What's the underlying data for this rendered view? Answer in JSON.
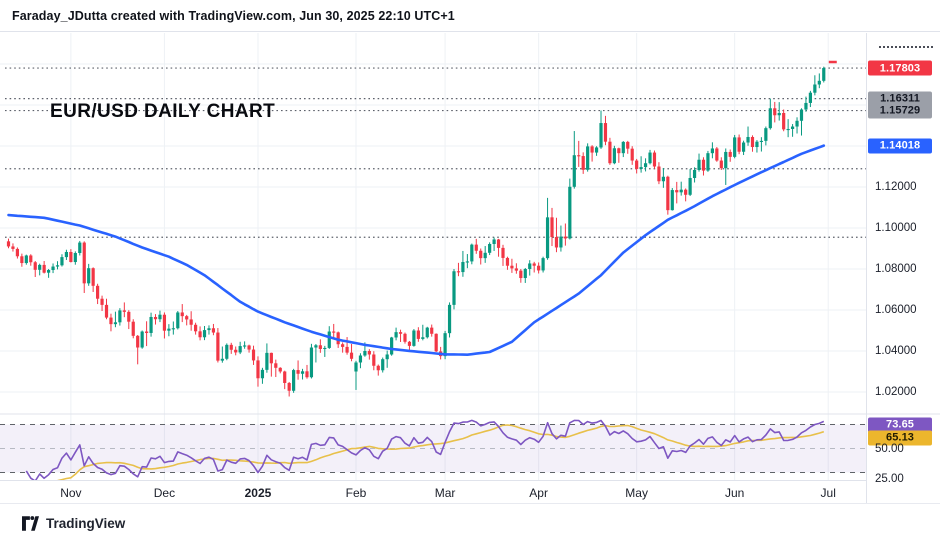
{
  "header": {
    "attribution": "Faraday_JDutta created with TradingView.com, Jun 30, 2025 22:10 UTC+1"
  },
  "footer": {
    "brand": "TradingView"
  },
  "colors": {
    "up": "#089981",
    "down": "#f23645",
    "ma": "#2962ff",
    "rsi": "#7e57c2",
    "rsi_ma": "#e8c04a",
    "badge_last_bg": "#f23645",
    "badge_gray_bg": "#9b9fa8",
    "badge_ma_bg": "#2962ff",
    "badge_rsi_bg": "#7e57c2",
    "badge_rsi_ma_bg": "#ecb62d",
    "grid": "#eef1f5",
    "dotted_level": "#5d616b",
    "axis_text": "#131722"
  },
  "chart_data": {
    "type": "candlestick",
    "title": "EUR/USD DAILY CHART",
    "pair": "EUR/USD",
    "timeframe": "Daily",
    "legend_position": "none",
    "grid": true,
    "x_axis": {
      "labels": [
        {
          "text": "Nov",
          "candle_index": 14,
          "bold": false
        },
        {
          "text": "Dec",
          "candle_index": 35,
          "bold": false
        },
        {
          "text": "2025",
          "candle_index": 56,
          "bold": true
        },
        {
          "text": "Feb",
          "candle_index": 78,
          "bold": false
        },
        {
          "text": "Mar",
          "candle_index": 98,
          "bold": false
        },
        {
          "text": "Apr",
          "candle_index": 119,
          "bold": false
        },
        {
          "text": "May",
          "candle_index": 141,
          "bold": false
        },
        {
          "text": "Jun",
          "candle_index": 163,
          "bold": false
        },
        {
          "text": "Jul",
          "candle_index": 184,
          "bold": false
        }
      ]
    },
    "y_axis": {
      "visible_range": [
        1.012,
        1.19
      ],
      "grid_values": [
        1.02,
        1.04,
        1.06,
        1.08,
        1.1,
        1.12,
        1.14,
        1.16,
        1.18
      ],
      "ticks": [
        {
          "label": "1.12000",
          "value": 1.12
        },
        {
          "label": "1.10000",
          "value": 1.1
        },
        {
          "label": "1.08000",
          "value": 1.08
        },
        {
          "label": "1.06000",
          "value": 1.06
        },
        {
          "label": "1.04000",
          "value": 1.04
        },
        {
          "label": "1.02000",
          "value": 1.02
        }
      ]
    },
    "last_price": {
      "value": 1.17803,
      "label": "1.17803",
      "direction": "up"
    },
    "horizontal_levels": [
      {
        "value": 1.17803,
        "label": "1.17803",
        "style": "last"
      },
      {
        "value": 1.16311,
        "label": "1.16311",
        "style": "gray"
      },
      {
        "value": 1.15729,
        "label": "1.15729",
        "style": "gray"
      },
      {
        "value": 1.1289,
        "label": "",
        "style": "plain"
      },
      {
        "value": 1.0955,
        "label": "",
        "style": "plain"
      }
    ],
    "ma_line": {
      "name": "moving-average",
      "current_value": 1.14018,
      "label": "1.14018",
      "anchors": [
        [
          0,
          1.1063
        ],
        [
          8,
          1.105
        ],
        [
          16,
          1.1012
        ],
        [
          24,
          1.0958
        ],
        [
          30,
          1.0905
        ],
        [
          36,
          1.086
        ],
        [
          40,
          1.082
        ],
        [
          44,
          1.077
        ],
        [
          48,
          1.0705
        ],
        [
          52,
          1.064
        ],
        [
          56,
          1.0592
        ],
        [
          62,
          1.054
        ],
        [
          68,
          1.0494
        ],
        [
          74,
          1.0455
        ],
        [
          80,
          1.043
        ],
        [
          86,
          1.041
        ],
        [
          92,
          1.0396
        ],
        [
          98,
          1.0384
        ],
        [
          103,
          1.0382
        ],
        [
          108,
          1.0395
        ],
        [
          113,
          1.0445
        ],
        [
          118,
          1.054
        ],
        [
          123,
          1.061
        ],
        [
          128,
          1.068
        ],
        [
          133,
          1.077
        ],
        [
          138,
          1.088
        ],
        [
          143,
          1.0965
        ],
        [
          148,
          1.104
        ],
        [
          153,
          1.1095
        ],
        [
          158,
          1.1155
        ],
        [
          163,
          1.121
        ],
        [
          168,
          1.1262
        ],
        [
          173,
          1.1312
        ],
        [
          178,
          1.1362
        ],
        [
          183,
          1.14018
        ]
      ]
    },
    "rsi_panel": {
      "length": 14,
      "current_value": 73.65,
      "current_label": "73.65",
      "ma_current_value": 65.13,
      "ma_current_label": "65.13",
      "upper_band": 70,
      "lower_band": 30,
      "mid_line": 50,
      "axis_ticks": [
        {
          "label": "50.00",
          "value": 50
        },
        {
          "label": "25.00",
          "value": 25
        }
      ]
    },
    "candles_ohlc": [
      [
        1.0935,
        1.0948,
        1.0901,
        1.091
      ],
      [
        1.091,
        1.0925,
        1.0885,
        1.0898
      ],
      [
        1.0898,
        1.0905,
        1.0851,
        1.0862
      ],
      [
        1.0862,
        1.0875,
        1.0811,
        1.0829
      ],
      [
        1.0829,
        1.087,
        1.0821,
        1.0866
      ],
      [
        1.0866,
        1.0872,
        1.0816,
        1.0833
      ],
      [
        1.0833,
        1.0839,
        1.0761,
        1.0796
      ],
      [
        1.0796,
        1.0826,
        1.0769,
        1.082
      ],
      [
        1.082,
        1.0839,
        1.0778,
        1.0782
      ],
      [
        1.0782,
        1.08,
        1.0757,
        1.0795
      ],
      [
        1.0795,
        1.0827,
        1.078,
        1.0812
      ],
      [
        1.0812,
        1.0838,
        1.0798,
        1.0818
      ],
      [
        1.0818,
        1.0872,
        1.0812,
        1.0858
      ],
      [
        1.0858,
        1.0894,
        1.0844,
        1.0883
      ],
      [
        1.0883,
        1.0897,
        1.0832,
        1.0834
      ],
      [
        1.0834,
        1.0886,
        1.0821,
        1.0878
      ],
      [
        1.0878,
        1.0937,
        1.0866,
        1.0929
      ],
      [
        1.0929,
        1.0935,
        1.0683,
        1.073
      ],
      [
        1.073,
        1.0825,
        1.0718,
        1.0804
      ],
      [
        1.0804,
        1.0808,
        1.0688,
        1.0718
      ],
      [
        1.0718,
        1.0728,
        1.0629,
        1.0655
      ],
      [
        1.0655,
        1.067,
        1.0595,
        1.0625
      ],
      [
        1.0625,
        1.0655,
        1.0555,
        1.0563
      ],
      [
        1.0563,
        1.0582,
        1.0496,
        1.0531
      ],
      [
        1.0531,
        1.0592,
        1.0516,
        1.054
      ],
      [
        1.054,
        1.0609,
        1.0524,
        1.0598
      ],
      [
        1.0598,
        1.0637,
        1.0565,
        1.0591
      ],
      [
        1.0591,
        1.0599,
        1.0507,
        1.0543
      ],
      [
        1.0543,
        1.0555,
        1.0462,
        1.0474
      ],
      [
        1.0474,
        1.0478,
        1.0335,
        1.0417
      ],
      [
        1.0417,
        1.05,
        1.0411,
        1.0495
      ],
      [
        1.0495,
        1.0545,
        1.0424,
        1.0488
      ],
      [
        1.0488,
        1.0587,
        1.047,
        1.0566
      ],
      [
        1.0566,
        1.058,
        1.0529,
        1.0555
      ],
      [
        1.0555,
        1.0597,
        1.0541,
        1.0577
      ],
      [
        1.0577,
        1.0588,
        1.0461,
        1.0499
      ],
      [
        1.0499,
        1.0531,
        1.0472,
        1.0509
      ],
      [
        1.0509,
        1.0544,
        1.048,
        1.0511
      ],
      [
        1.0511,
        1.0595,
        1.0505,
        1.0588
      ],
      [
        1.0588,
        1.0629,
        1.0541,
        1.057
      ],
      [
        1.057,
        1.0576,
        1.0525,
        1.0554
      ],
      [
        1.0554,
        1.0594,
        1.0499,
        1.0528
      ],
      [
        1.0528,
        1.0538,
        1.048,
        1.0496
      ],
      [
        1.0496,
        1.052,
        1.0452,
        1.0467
      ],
      [
        1.0467,
        1.0522,
        1.0453,
        1.0502
      ],
      [
        1.0502,
        1.0525,
        1.048,
        1.0511
      ],
      [
        1.0511,
        1.0532,
        1.0477,
        1.049
      ],
      [
        1.049,
        1.0512,
        1.0344,
        1.0353
      ],
      [
        1.0353,
        1.0422,
        1.0343,
        1.0362
      ],
      [
        1.0362,
        1.0437,
        1.0355,
        1.043
      ],
      [
        1.043,
        1.044,
        1.0386,
        1.0406
      ],
      [
        1.0406,
        1.0422,
        1.0379,
        1.0393
      ],
      [
        1.0393,
        1.0445,
        1.0385,
        1.0424
      ],
      [
        1.0424,
        1.0447,
        1.0411,
        1.0427
      ],
      [
        1.0427,
        1.0431,
        1.0392,
        1.0407
      ],
      [
        1.0407,
        1.0426,
        1.0332,
        1.0354
      ],
      [
        1.0354,
        1.0374,
        1.0226,
        1.0267
      ],
      [
        1.0267,
        1.0318,
        1.024,
        1.0308
      ],
      [
        1.0308,
        1.0437,
        1.0294,
        1.0391
      ],
      [
        1.0391,
        1.0392,
        1.0275,
        1.034
      ],
      [
        1.034,
        1.0358,
        1.0273,
        1.0318
      ],
      [
        1.0318,
        1.0321,
        1.0291,
        1.03
      ],
      [
        1.03,
        1.0304,
        1.0214,
        1.0244
      ],
      [
        1.0244,
        1.0249,
        1.0178,
        1.0206
      ],
      [
        1.0206,
        1.0313,
        1.0196,
        1.0307
      ],
      [
        1.0307,
        1.0354,
        1.026,
        1.0289
      ],
      [
        1.0289,
        1.0313,
        1.0261,
        1.0301
      ],
      [
        1.0301,
        1.0332,
        1.0265,
        1.0272
      ],
      [
        1.0272,
        1.0435,
        1.0266,
        1.0417
      ],
      [
        1.0417,
        1.0434,
        1.0344,
        1.0428
      ],
      [
        1.0428,
        1.0457,
        1.0391,
        1.041
      ],
      [
        1.041,
        1.0425,
        1.0371,
        1.0415
      ],
      [
        1.0415,
        1.0521,
        1.041,
        1.0495
      ],
      [
        1.0495,
        1.0532,
        1.0458,
        1.0491
      ],
      [
        1.0491,
        1.0495,
        1.0415,
        1.0433
      ],
      [
        1.0433,
        1.0442,
        1.0392,
        1.042
      ],
      [
        1.042,
        1.0468,
        1.0382,
        1.0392
      ],
      [
        1.0392,
        1.0434,
        1.035,
        1.0362
      ],
      [
        1.03,
        1.0352,
        1.021,
        1.0344
      ],
      [
        1.0344,
        1.0389,
        1.0316,
        1.0378
      ],
      [
        1.0378,
        1.0442,
        1.0372,
        1.04
      ],
      [
        1.04,
        1.0409,
        1.0358,
        1.0383
      ],
      [
        1.0383,
        1.0399,
        1.0306,
        1.0328
      ],
      [
        1.0328,
        1.0334,
        1.028,
        1.0306
      ],
      [
        1.0306,
        1.0368,
        1.0295,
        1.036
      ],
      [
        1.036,
        1.0402,
        1.0318,
        1.0383
      ],
      [
        1.0383,
        1.0469,
        1.0377,
        1.0466
      ],
      [
        1.0466,
        1.0514,
        1.0452,
        1.0492
      ],
      [
        1.0492,
        1.0504,
        1.0444,
        1.0484
      ],
      [
        1.0484,
        1.049,
        1.0436,
        1.0445
      ],
      [
        1.0445,
        1.0449,
        1.0401,
        1.0425
      ],
      [
        1.0425,
        1.0507,
        1.0421,
        1.05
      ],
      [
        1.05,
        1.0516,
        1.0445,
        1.0459
      ],
      [
        1.0459,
        1.0528,
        1.0452,
        1.0467
      ],
      [
        1.0467,
        1.0518,
        1.0461,
        1.0514
      ],
      [
        1.0514,
        1.0529,
        1.047,
        1.0484
      ],
      [
        1.0484,
        1.0486,
        1.0395,
        1.0398
      ],
      [
        1.0398,
        1.042,
        1.0359,
        1.0375
      ],
      [
        1.0375,
        1.0498,
        1.036,
        1.0487
      ],
      [
        1.0487,
        1.0637,
        1.0466,
        1.0625
      ],
      [
        1.0625,
        1.08,
        1.0603,
        1.0789
      ],
      [
        1.0789,
        1.083,
        1.0765,
        1.0785
      ],
      [
        1.0785,
        1.0888,
        1.0762,
        1.0834
      ],
      [
        1.0834,
        1.0873,
        1.0804,
        1.0837
      ],
      [
        1.0837,
        1.0924,
        1.0823,
        1.0919
      ],
      [
        1.0919,
        1.0947,
        1.0874,
        1.0889
      ],
      [
        1.0889,
        1.09,
        1.0822,
        1.0853
      ],
      [
        1.0853,
        1.0912,
        1.083,
        1.0879
      ],
      [
        1.0879,
        1.093,
        1.0868,
        1.0922
      ],
      [
        1.0922,
        1.0954,
        1.0888,
        1.0944
      ],
      [
        1.0944,
        1.0947,
        1.086,
        1.0903
      ],
      [
        1.0903,
        1.0918,
        1.0815,
        1.0854
      ],
      [
        1.0854,
        1.086,
        1.0796,
        1.0816
      ],
      [
        1.0816,
        1.085,
        1.0781,
        1.0803
      ],
      [
        1.0803,
        1.0828,
        1.0777,
        1.0792
      ],
      [
        1.0792,
        1.08,
        1.0733,
        1.0756
      ],
      [
        1.0756,
        1.0805,
        1.0732,
        1.08
      ],
      [
        1.08,
        1.0843,
        1.0768,
        1.0827
      ],
      [
        1.0827,
        1.0835,
        1.0783,
        1.0816
      ],
      [
        1.0816,
        1.0832,
        1.0778,
        1.0793
      ],
      [
        1.0793,
        1.086,
        1.0783,
        1.0853
      ],
      [
        1.0853,
        1.1147,
        1.0845,
        1.1052
      ],
      [
        1.1052,
        1.1098,
        1.0912,
        1.0956
      ],
      [
        1.0956,
        1.105,
        1.0882,
        1.0905
      ],
      [
        1.0905,
        1.1012,
        1.0885,
        1.0958
      ],
      [
        1.0958,
        1.1022,
        1.0914,
        1.0949
      ],
      [
        1.0949,
        1.1241,
        1.0944,
        1.1201
      ],
      [
        1.1201,
        1.1473,
        1.1192,
        1.1355
      ],
      [
        1.1355,
        1.1425,
        1.1298,
        1.1351
      ],
      [
        1.1351,
        1.1369,
        1.1264,
        1.1284
      ],
      [
        1.1284,
        1.1413,
        1.1275,
        1.1398
      ],
      [
        1.1398,
        1.1404,
        1.1324,
        1.1368
      ],
      [
        1.1368,
        1.1399,
        1.1352,
        1.1393
      ],
      [
        1.1393,
        1.1573,
        1.1386,
        1.1512
      ],
      [
        1.1512,
        1.1547,
        1.1404,
        1.1421
      ],
      [
        1.1421,
        1.144,
        1.1308,
        1.1316
      ],
      [
        1.1316,
        1.1401,
        1.1311,
        1.1389
      ],
      [
        1.1389,
        1.1392,
        1.1318,
        1.1365
      ],
      [
        1.1365,
        1.1424,
        1.1346,
        1.142
      ],
      [
        1.142,
        1.1425,
        1.1362,
        1.1387
      ],
      [
        1.1387,
        1.1399,
        1.1308,
        1.1329
      ],
      [
        1.1329,
        1.1337,
        1.1266,
        1.1288
      ],
      [
        1.1288,
        1.135,
        1.127,
        1.1297
      ],
      [
        1.1297,
        1.134,
        1.1276,
        1.1316
      ],
      [
        1.1316,
        1.1381,
        1.131,
        1.1368
      ],
      [
        1.1368,
        1.1378,
        1.1289,
        1.13
      ],
      [
        1.13,
        1.1321,
        1.1214,
        1.1228
      ],
      [
        1.1228,
        1.1292,
        1.1196,
        1.125
      ],
      [
        1.125,
        1.1255,
        1.1065,
        1.1087
      ],
      [
        1.1087,
        1.1195,
        1.1085,
        1.1185
      ],
      [
        1.1185,
        1.1225,
        1.112,
        1.1174
      ],
      [
        1.1174,
        1.1226,
        1.1158,
        1.1187
      ],
      [
        1.1187,
        1.1193,
        1.113,
        1.1162
      ],
      [
        1.1162,
        1.1288,
        1.1156,
        1.1244
      ],
      [
        1.1244,
        1.1296,
        1.1222,
        1.1283
      ],
      [
        1.1283,
        1.1363,
        1.1275,
        1.1333
      ],
      [
        1.1333,
        1.1345,
        1.1256,
        1.128
      ],
      [
        1.128,
        1.1376,
        1.1274,
        1.1365
      ],
      [
        1.1365,
        1.1418,
        1.134,
        1.1388
      ],
      [
        1.1388,
        1.1395,
        1.1323,
        1.1329
      ],
      [
        1.1329,
        1.1345,
        1.1283,
        1.1292
      ],
      [
        1.1292,
        1.1388,
        1.121,
        1.1371
      ],
      [
        1.1371,
        1.1383,
        1.1323,
        1.1347
      ],
      [
        1.1347,
        1.1454,
        1.134,
        1.1442
      ],
      [
        1.1442,
        1.1456,
        1.136,
        1.1372
      ],
      [
        1.1372,
        1.1426,
        1.1356,
        1.1417
      ],
      [
        1.1417,
        1.1495,
        1.1401,
        1.1444
      ],
      [
        1.1444,
        1.1452,
        1.1372,
        1.1395
      ],
      [
        1.1395,
        1.1429,
        1.1368,
        1.1421
      ],
      [
        1.1421,
        1.1443,
        1.1373,
        1.1425
      ],
      [
        1.1425,
        1.1495,
        1.1403,
        1.1487
      ],
      [
        1.1487,
        1.1631,
        1.148,
        1.1584
      ],
      [
        1.1584,
        1.1615,
        1.1515,
        1.155
      ],
      [
        1.155,
        1.1614,
        1.1524,
        1.1561
      ],
      [
        1.1561,
        1.1578,
        1.1472,
        1.1481
      ],
      [
        1.1481,
        1.1531,
        1.1443,
        1.1483
      ],
      [
        1.1483,
        1.1507,
        1.1445,
        1.1495
      ],
      [
        1.1495,
        1.154,
        1.1461,
        1.1523
      ],
      [
        1.1523,
        1.1584,
        1.1451,
        1.1578
      ],
      [
        1.1578,
        1.1641,
        1.1567,
        1.161
      ],
      [
        1.161,
        1.1669,
        1.159,
        1.166
      ],
      [
        1.166,
        1.1745,
        1.1647,
        1.17
      ],
      [
        1.17,
        1.1754,
        1.1682,
        1.1718
      ],
      [
        1.1718,
        1.1787,
        1.171,
        1.17803
      ]
    ]
  }
}
